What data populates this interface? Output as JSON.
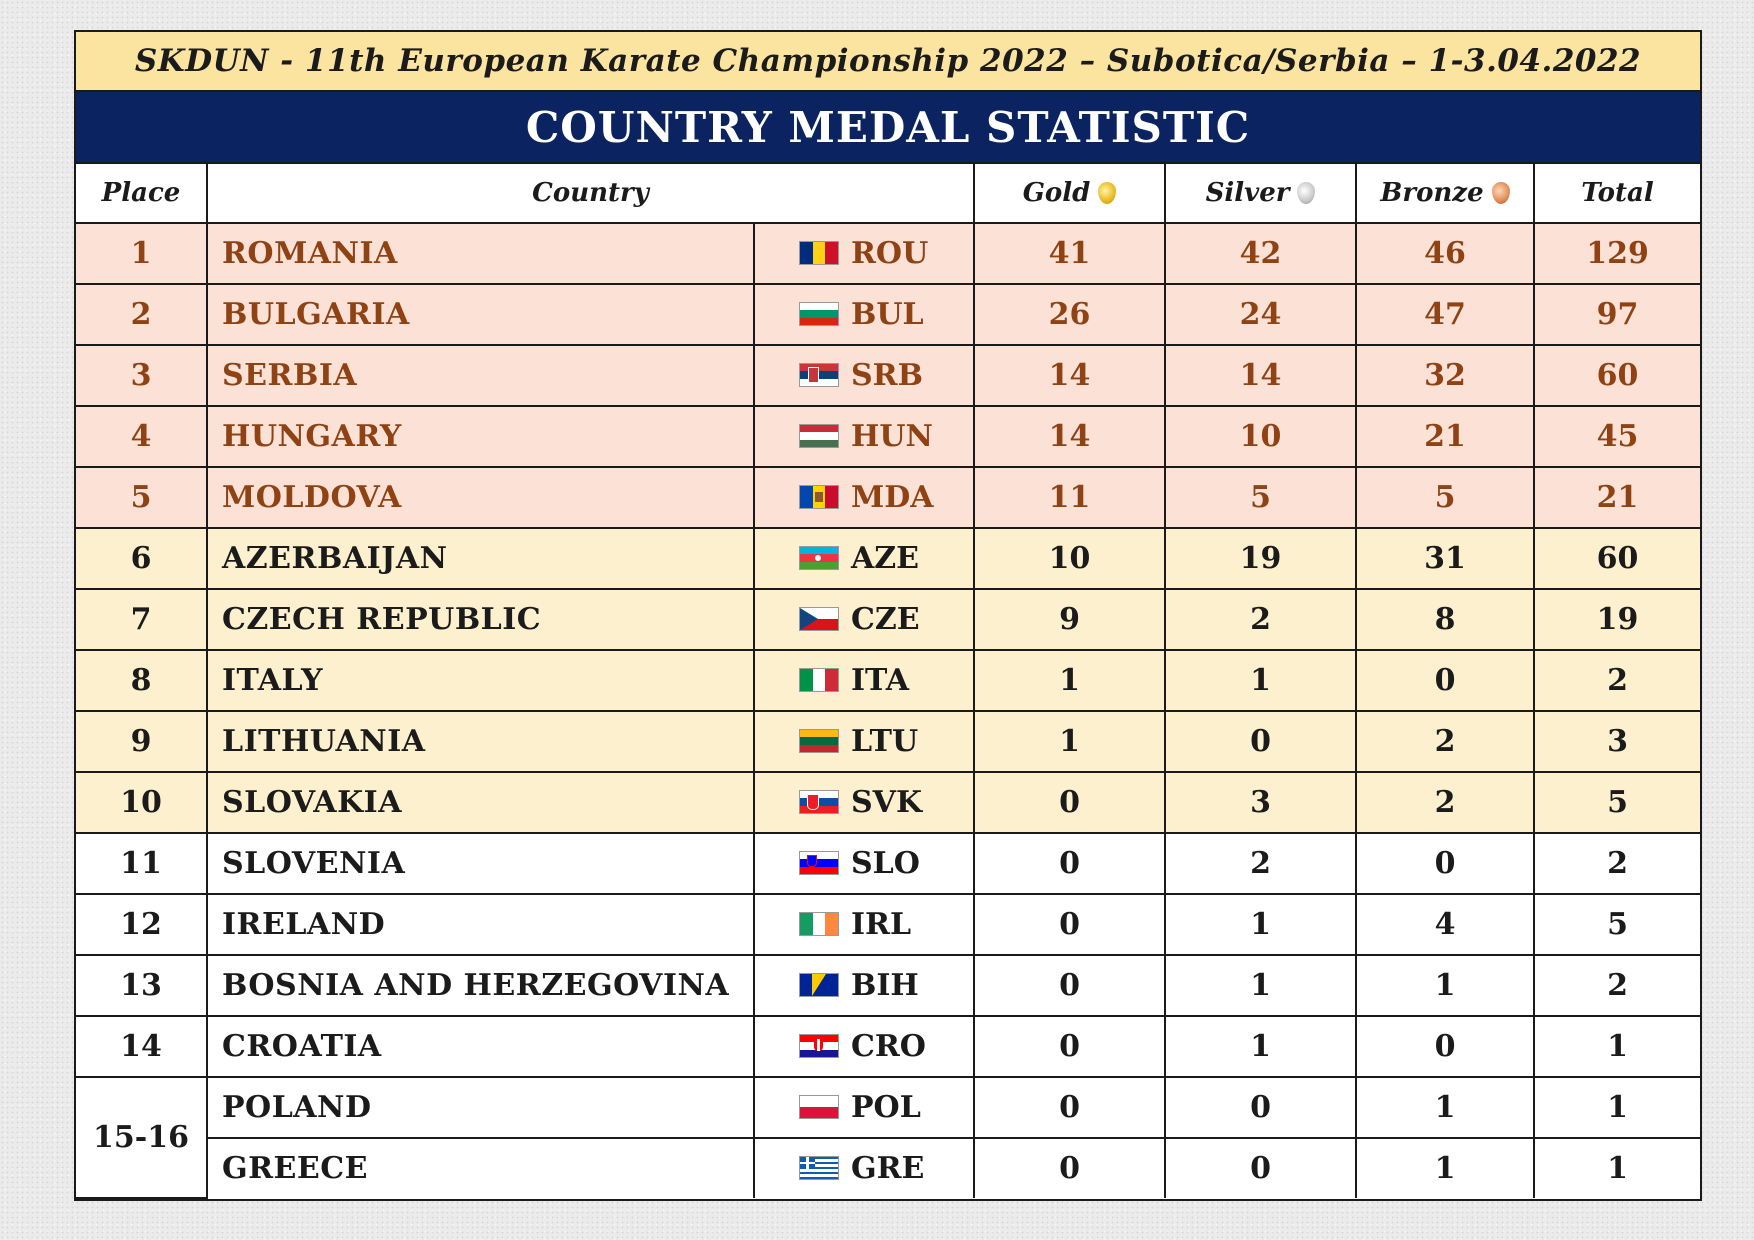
{
  "title": "SKDUN - 11th European Karate Championship 2022 – Subotica/Serbia – 1-3.04.2022",
  "banner": "COUNTRY MEDAL STATISTIC",
  "headers": {
    "place": "Place",
    "country": "Country",
    "gold": "Gold",
    "silver": "Silver",
    "bronze": "Bronze",
    "total": "Total"
  },
  "rows": [
    {
      "place": "1",
      "country": "ROMANIA",
      "code": "ROU",
      "flag": "romania-flag-icon",
      "gold": "41",
      "silver": "42",
      "bronze": "46",
      "total": "129"
    },
    {
      "place": "2",
      "country": "BULGARIA",
      "code": "BUL",
      "flag": "bulgaria-flag-icon",
      "gold": "26",
      "silver": "24",
      "bronze": "47",
      "total": "97"
    },
    {
      "place": "3",
      "country": "SERBIA",
      "code": "SRB",
      "flag": "serbia-flag-icon",
      "gold": "14",
      "silver": "14",
      "bronze": "32",
      "total": "60"
    },
    {
      "place": "4",
      "country": "HUNGARY",
      "code": "HUN",
      "flag": "hungary-flag-icon",
      "gold": "14",
      "silver": "10",
      "bronze": "21",
      "total": "45"
    },
    {
      "place": "5",
      "country": "MOLDOVA",
      "code": "MDA",
      "flag": "moldova-flag-icon",
      "gold": "11",
      "silver": "5",
      "bronze": "5",
      "total": "21"
    },
    {
      "place": "6",
      "country": "AZERBAIJAN",
      "code": "AZE",
      "flag": "azerbaijan-flag-icon",
      "gold": "10",
      "silver": "19",
      "bronze": "31",
      "total": "60"
    },
    {
      "place": "7",
      "country": "CZECH REPUBLIC",
      "code": "CZE",
      "flag": "czech-flag-icon",
      "gold": "9",
      "silver": "2",
      "bronze": "8",
      "total": "19"
    },
    {
      "place": "8",
      "country": "ITALY",
      "code": "ITA",
      "flag": "italy-flag-icon",
      "gold": "1",
      "silver": "1",
      "bronze": "0",
      "total": "2"
    },
    {
      "place": "9",
      "country": "LITHUANIA",
      "code": "LTU",
      "flag": "lithuania-flag-icon",
      "gold": "1",
      "silver": "0",
      "bronze": "2",
      "total": "3"
    },
    {
      "place": "10",
      "country": "SLOVAKIA",
      "code": "SVK",
      "flag": "slovakia-flag-icon",
      "gold": "0",
      "silver": "3",
      "bronze": "2",
      "total": "5"
    },
    {
      "place": "11",
      "country": "SLOVENIA",
      "code": "SLO",
      "flag": "slovenia-flag-icon",
      "gold": "0",
      "silver": "2",
      "bronze": "0",
      "total": "2"
    },
    {
      "place": "12",
      "country": "IRELAND",
      "code": "IRL",
      "flag": "ireland-flag-icon",
      "gold": "0",
      "silver": "1",
      "bronze": "4",
      "total": "5"
    },
    {
      "place": "13",
      "country": "BOSNIA AND HERZEGOVINA",
      "code": "BIH",
      "flag": "bosnia-flag-icon",
      "gold": "0",
      "silver": "1",
      "bronze": "1",
      "total": "2"
    },
    {
      "place": "14",
      "country": "CROATIA",
      "code": "CRO",
      "flag": "croatia-flag-icon",
      "gold": "0",
      "silver": "1",
      "bronze": "0",
      "total": "1"
    },
    {
      "place": "15-16",
      "country": "POLAND",
      "code": "POL",
      "flag": "poland-flag-icon",
      "gold": "0",
      "silver": "0",
      "bronze": "1",
      "total": "1"
    },
    {
      "place": "",
      "country": "GREECE",
      "code": "GRE",
      "flag": "greece-flag-icon",
      "gold": "0",
      "silver": "0",
      "bronze": "1",
      "total": "1"
    }
  ],
  "colors": {
    "title_bg": "#fbe3a0",
    "banner_bg": "#0b2461",
    "top5_bg": "#fbe1d6",
    "top5_text": "#8f4314",
    "mid_bg": "#fdf0cf"
  }
}
